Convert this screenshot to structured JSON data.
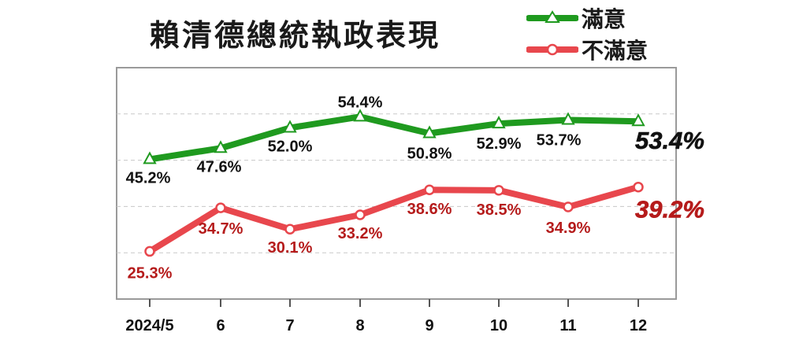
{
  "chart_data": {
    "type": "line",
    "title": "賴清德總統執政表現",
    "categories": [
      "2024/5",
      "6",
      "7",
      "8",
      "9",
      "10",
      "11",
      "12"
    ],
    "series": [
      {
        "name": "滿意",
        "color": "#1f9a1f",
        "marker": "triangle",
        "values": [
          45.2,
          47.6,
          52.0,
          54.4,
          50.8,
          52.9,
          53.7,
          53.4
        ],
        "labels": [
          "45.2%",
          "47.6%",
          "52.0%",
          "54.4%",
          "50.8%",
          "52.9%",
          "53.7%",
          "53.4%"
        ]
      },
      {
        "name": "不滿意",
        "color": "#e8474d",
        "label_color": "#b51b1b",
        "marker": "circle",
        "values": [
          25.3,
          34.7,
          30.1,
          33.2,
          38.6,
          38.5,
          34.9,
          39.2
        ],
        "labels": [
          "25.3%",
          "34.7%",
          "30.1%",
          "33.2%",
          "38.6%",
          "38.5%",
          "34.9%",
          "39.2%"
        ]
      }
    ],
    "ylim": [
      15,
      65
    ],
    "grid": true,
    "legend": "top-right",
    "xlabel": "",
    "ylabel": ""
  }
}
